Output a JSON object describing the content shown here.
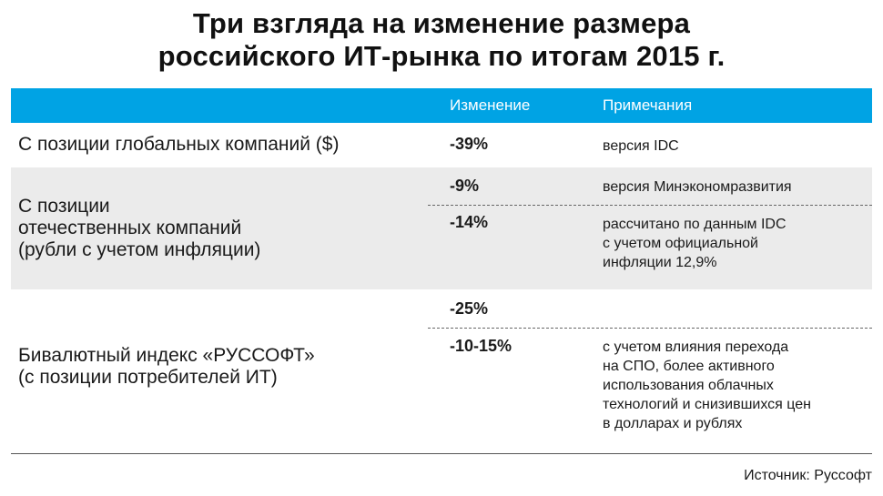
{
  "title_line1": "Три взгляда на изменение размера",
  "title_line2": "российского ИТ-рынка по итогам 2015 г.",
  "header": {
    "col_change": "Изменение",
    "col_notes": "Примечания"
  },
  "rows": [
    {
      "label": [
        "С позиции глобальных компаний ($)"
      ],
      "entries": [
        {
          "value": "-39%",
          "note": [
            "версия IDC"
          ]
        }
      ]
    },
    {
      "label": [
        "С позиции",
        "отечественных компаний",
        "(рубли с учетом инфляции)"
      ],
      "entries": [
        {
          "value": "-9%",
          "note": [
            "версия Минэкономразвития"
          ]
        },
        {
          "value": "-14%",
          "note": [
            "рассчитано по данным IDC",
            "с учетом официальной",
            "инфляции 12,9%"
          ]
        }
      ]
    },
    {
      "label": [
        "Бивалютный индекс «РУССОФТ»",
        "(с позиции потребителей ИТ)"
      ],
      "entries": [
        {
          "value": "-25%",
          "note": []
        },
        {
          "value": "-10-15%",
          "note": [
            "с учетом влияния перехода",
            "на СПО, более активного",
            "использования облачных",
            "технологий и снизившихся цен",
            "в долларах и рублях"
          ]
        }
      ]
    }
  ],
  "source": "Источник: Руссофт"
}
